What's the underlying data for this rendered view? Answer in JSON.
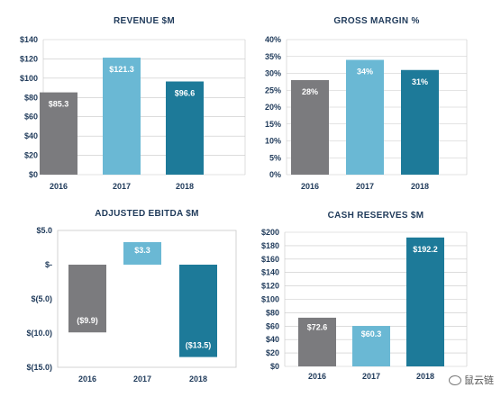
{
  "chart_data": [
    {
      "type": "bar",
      "title": "REVENUE $M",
      "categories": [
        "2016",
        "2017",
        "2018"
      ],
      "values": [
        85.3,
        121.3,
        96.6
      ],
      "value_labels": [
        "$85.3",
        "$121.3",
        "$96.6"
      ],
      "yticks": [
        0,
        20,
        40,
        60,
        80,
        100,
        120,
        140
      ],
      "ytick_labels": [
        "$0",
        "$20",
        "$40",
        "$60",
        "$80",
        "$100",
        "$120",
        "$140"
      ],
      "ylim": [
        0,
        140
      ],
      "grid": true,
      "colors": [
        "#7b7b7e",
        "#6ab8d4",
        "#1d7a99"
      ]
    },
    {
      "type": "bar",
      "title": "GROSS MARGIN %",
      "categories": [
        "2016",
        "2017",
        "2018"
      ],
      "values": [
        28,
        34,
        31
      ],
      "value_labels": [
        "28%",
        "34%",
        "31%"
      ],
      "yticks": [
        0,
        5,
        10,
        15,
        20,
        25,
        30,
        35,
        40
      ],
      "ytick_labels": [
        "0%",
        "5%",
        "10%",
        "15%",
        "20%",
        "25%",
        "30%",
        "35%",
        "40%"
      ],
      "ylim": [
        0,
        40
      ],
      "grid": true,
      "colors": [
        "#7b7b7e",
        "#6ab8d4",
        "#1d7a99"
      ]
    },
    {
      "type": "bar",
      "title": "ADJUSTED EBITDA $M",
      "categories": [
        "2016",
        "2017",
        "2018"
      ],
      "values": [
        -9.9,
        3.3,
        -13.5
      ],
      "value_labels": [
        "($9.9)",
        "$3.3",
        "($13.5)"
      ],
      "yticks": [
        5,
        0,
        -5,
        -10,
        -15
      ],
      "ytick_labels": [
        "$5.0",
        "$-",
        "$(5.0)",
        "$(10.0)",
        "$(15.0)"
      ],
      "ylim": [
        -15,
        5
      ],
      "grid": false,
      "colors": [
        "#7b7b7e",
        "#6ab8d4",
        "#1d7a99"
      ]
    },
    {
      "type": "bar",
      "title": "CASH RESERVES $M",
      "categories": [
        "2016",
        "2017",
        "2018"
      ],
      "values": [
        72.6,
        60.3,
        192.2
      ],
      "value_labels": [
        "$72.6",
        "$60.3",
        "$192.2"
      ],
      "yticks": [
        0,
        20,
        40,
        60,
        80,
        100,
        120,
        140,
        160,
        180,
        200
      ],
      "ytick_labels": [
        "$0",
        "$20",
        "$40",
        "$60",
        "$80",
        "$100",
        "$120",
        "$140",
        "$160",
        "$180",
        "$200"
      ],
      "ylim": [
        0,
        200
      ],
      "grid": true,
      "colors": [
        "#7b7b7e",
        "#6ab8d4",
        "#1d7a99"
      ]
    }
  ],
  "watermark": {
    "text": "鼠云链",
    "icon": "wechat-icon"
  }
}
